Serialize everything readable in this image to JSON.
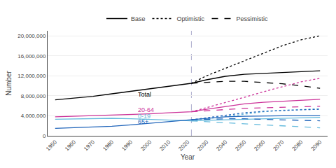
{
  "chart_data": {
    "type": "line",
    "xlabel": "Year",
    "ylabel": "Number",
    "x": [
      1950,
      1960,
      1970,
      1980,
      1990,
      2000,
      2010,
      2022,
      2030,
      2040,
      2050,
      2060,
      2070,
      2080,
      2090
    ],
    "series": [
      {
        "name": "Total",
        "color": "#000000",
        "line_style": "solid",
        "values": [
          7200000,
          7500000,
          7900000,
          8400000,
          8900000,
          9400000,
          9900000,
          10500000,
          11200000,
          11900000,
          12300000,
          12500000,
          12700000,
          12800000,
          13000000
        ]
      },
      {
        "name": "Total",
        "color": "#000000",
        "line_style": "dot",
        "values": [
          null,
          null,
          null,
          null,
          null,
          null,
          null,
          10500000,
          12000000,
          13500000,
          15000000,
          16500000,
          18000000,
          19200000,
          20000000
        ]
      },
      {
        "name": "Total",
        "color": "#000000",
        "line_style": "dash",
        "values": [
          null,
          null,
          null,
          null,
          null,
          null,
          null,
          10500000,
          10700000,
          10900000,
          10900000,
          10700000,
          10400000,
          10000000,
          9500000
        ]
      },
      {
        "name": "20-64",
        "color": "#cc3399",
        "line_style": "solid",
        "values": [
          3800000,
          3900000,
          4000000,
          4100000,
          4200000,
          4400000,
          4600000,
          4800000,
          5300000,
          5900000,
          6400000,
          6700000,
          6900000,
          7100000,
          7300000
        ]
      },
      {
        "name": "20-64",
        "color": "#cc3399",
        "line_style": "dot",
        "values": [
          null,
          null,
          null,
          null,
          null,
          null,
          null,
          4800000,
          5600000,
          6600000,
          7700000,
          8800000,
          9800000,
          10800000,
          11500000
        ]
      },
      {
        "name": "20-64",
        "color": "#cc3399",
        "line_style": "dash",
        "values": [
          null,
          null,
          null,
          null,
          null,
          null,
          null,
          4800000,
          5000000,
          5300000,
          5500000,
          5600000,
          5700000,
          5800000,
          5900000
        ]
      },
      {
        "name": "0-19",
        "color": "#66bbdd",
        "line_style": "solid",
        "values": [
          3300000,
          3400000,
          3500000,
          3500000,
          3400000,
          3300000,
          3100000,
          3000000,
          3100000,
          3200000,
          3300000,
          3400000,
          3500000,
          3600000,
          3700000
        ]
      },
      {
        "name": "0-19",
        "color": "#66bbdd",
        "line_style": "dot",
        "values": [
          null,
          null,
          null,
          null,
          null,
          null,
          null,
          3000000,
          3400000,
          3900000,
          4400000,
          4800000,
          5100000,
          5300000,
          5400000
        ]
      },
      {
        "name": "0-19",
        "color": "#66bbdd",
        "line_style": "dash",
        "values": [
          null,
          null,
          null,
          null,
          null,
          null,
          null,
          3000000,
          2800000,
          2600000,
          2400000,
          2200000,
          2000000,
          1800000,
          1600000
        ]
      },
      {
        "name": "65+",
        "color": "#2266bb",
        "line_style": "solid",
        "values": [
          1500000,
          1600000,
          1700000,
          1900000,
          2200000,
          2500000,
          2900000,
          3200000,
          3500000,
          3800000,
          3900000,
          4000000,
          4000000,
          4000000,
          4000000
        ]
      },
      {
        "name": "65+",
        "color": "#2266bb",
        "line_style": "dot",
        "values": [
          null,
          null,
          null,
          null,
          null,
          null,
          null,
          3200000,
          3600000,
          4200000,
          4600000,
          4900000,
          5100000,
          5200000,
          5300000
        ]
      },
      {
        "name": "65+",
        "color": "#2266bb",
        "line_style": "dash",
        "values": [
          null,
          null,
          null,
          null,
          null,
          null,
          null,
          3200000,
          3300000,
          3400000,
          3400000,
          3300000,
          3200000,
          3100000,
          3000000
        ]
      }
    ],
    "legend_entries": [
      {
        "name": "Base",
        "color": "#000000",
        "line_style": "solid"
      },
      {
        "name": "Optimistic",
        "color": "#000000",
        "line_style": "dot"
      },
      {
        "name": "Pessimistic",
        "color": "#000000",
        "line_style": "dash"
      }
    ],
    "annotations": [
      {
        "text": "Total",
        "x": 1993,
        "y": 8200000,
        "color": "#000000"
      },
      {
        "text": "20-64",
        "x": 1993,
        "y": 5200000,
        "color": "#cc3399"
      },
      {
        "text": "0-19",
        "x": 1993,
        "y": 3900000,
        "color": "#66bbdd"
      },
      {
        "text": "65+",
        "x": 1993,
        "y": 2800000,
        "color": "#2266bb"
      }
    ],
    "vlines": [
      {
        "x": 2022,
        "color": "#aaaacc",
        "line_style": "dash"
      }
    ],
    "xlim": [
      1946,
      2094
    ],
    "xticks": [
      1950,
      1960,
      1970,
      1980,
      1990,
      2000,
      2010,
      2020,
      2030,
      2040,
      2050,
      2060,
      2070,
      2080,
      2090
    ],
    "ylim": [
      0,
      21000000
    ],
    "yticks": [
      0,
      {
        "value": 4000000,
        "label": "4,000,000"
      },
      {
        "value": 8000000,
        "label": "8,000,000"
      },
      {
        "value": 12000000,
        "label": "12,000,000"
      },
      {
        "value": 16000000,
        "label": "16,000,000"
      },
      {
        "value": 20000000,
        "label": "20,000,000"
      }
    ],
    "grid": "y",
    "legend": "top"
  }
}
